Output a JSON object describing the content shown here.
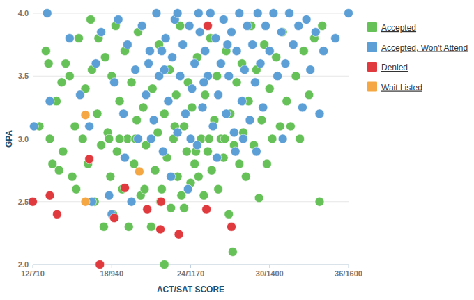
{
  "chart_data": {
    "type": "scatter",
    "x_label": "ACT/SAT SCORE",
    "y_label": "GPA",
    "xlim": [
      12,
      36
    ],
    "ylim": [
      2.0,
      4.0
    ],
    "xticks": [
      {
        "value": 12,
        "label": "12/710"
      },
      {
        "value": 18,
        "label": "18/940"
      },
      {
        "value": 24,
        "label": "24/1170"
      },
      {
        "value": 30,
        "label": "30/1400"
      },
      {
        "value": 36,
        "label": "36/1600"
      }
    ],
    "yticks": [
      {
        "value": 2.0,
        "label": "2.0"
      },
      2.5,
      {
        "value": 3.0,
        "label": "3.0"
      },
      3.5,
      {
        "value": 4.0,
        "label": "4.0"
      }
    ],
    "grid": true,
    "legend": "right",
    "marker": "circle",
    "series": [
      {
        "name": "Accepted",
        "color": "#66c159",
        "x": [
          12.5,
          13,
          13.2,
          13.5,
          13.3,
          13.8,
          14,
          14.2,
          14.5,
          14.3,
          14.8,
          15,
          15.2,
          15.5,
          15.3,
          15.8,
          16,
          16.2,
          16.4,
          16.5,
          16.7,
          16.9,
          17,
          17.2,
          17.4,
          17.5,
          17.7,
          17.9,
          18,
          18.1,
          18.3,
          18.4,
          18.6,
          18.8,
          19,
          19.2,
          19.3,
          19.5,
          19.7,
          19.9,
          20,
          20.2,
          20.4,
          20.6,
          20.8,
          21,
          21.1,
          21.3,
          21.5,
          21.6,
          21.8,
          22,
          22,
          22.2,
          22.4,
          22.5,
          22.7,
          22.9,
          23,
          23.2,
          23.3,
          23.5,
          23.7,
          23.8,
          24,
          24.1,
          24.3,
          24.5,
          24.6,
          24.8,
          25,
          25.1,
          25.3,
          25.5,
          25.6,
          25.8,
          26,
          26.1,
          26.3,
          26.5,
          26.7,
          26.9,
          27,
          27.2,
          27.3,
          27.5,
          27.7,
          27.9,
          28,
          28.2,
          28.4,
          28.6,
          28.8,
          29,
          29.2,
          29.4,
          29.6,
          29.8,
          30,
          30.2,
          30.5,
          30.8,
          31,
          31.3,
          31.6,
          32,
          32.3,
          32.6,
          33,
          33.4,
          33.8,
          34,
          23.5,
          21.7,
          20.5,
          24.4,
          22.8,
          19.8,
          18.6,
          17.8,
          25.4,
          26.6
        ],
        "values": [
          3.1,
          3.7,
          3.6,
          2.8,
          3.0,
          3.3,
          2.75,
          3.45,
          3.6,
          2.9,
          3.5,
          2.7,
          3.1,
          3.8,
          2.6,
          3.0,
          3.4,
          2.8,
          3.95,
          3.55,
          2.5,
          3.2,
          3.8,
          2.95,
          2.3,
          3.65,
          3.05,
          2.7,
          3.5,
          2.4,
          3.9,
          2.9,
          3.3,
          2.6,
          3.7,
          3.0,
          2.3,
          3.45,
          2.8,
          3.15,
          3.85,
          2.55,
          3.25,
          2.95,
          3.6,
          2.3,
          3.4,
          2.75,
          3.05,
          3.75,
          2.6,
          2.0,
          3.2,
          2.85,
          3.55,
          2.45,
          3.0,
          3.35,
          2.7,
          3.9,
          2.55,
          3.1,
          2.9,
          3.45,
          2.65,
          3.25,
          2.8,
          3.65,
          2.7,
          3.0,
          2.55,
          3.35,
          2.9,
          3.8,
          2.75,
          3.15,
          3.5,
          2.6,
          3.0,
          2.85,
          3.7,
          2.4,
          3.2,
          2.1,
          2.95,
          3.45,
          2.8,
          3.6,
          3.05,
          2.7,
          3.3,
          3.9,
          2.95,
          3.55,
          2.53,
          3.15,
          3.75,
          2.8,
          3.4,
          3.0,
          3.65,
          3.1,
          3.85,
          3.3,
          3.1,
          3.5,
          3.0,
          3.7,
          3.35,
          3.8,
          2.5,
          3.9,
          2.45,
          2.5,
          2.6,
          2.9,
          3.1,
          3.0,
          3.0,
          3.0,
          3.0,
          3.0
        ]
      },
      {
        "name": "Accepted, Won't Attend",
        "color": "#5b9fd6",
        "x": [
          12.1,
          13.1,
          13.3,
          14.8,
          15.6,
          16.3,
          16.8,
          17.2,
          17.8,
          18.2,
          18.5,
          18.9,
          19.2,
          19.5,
          19.8,
          20,
          20.3,
          20.6,
          20.9,
          21.2,
          21.4,
          21.6,
          21.9,
          22.1,
          22.3,
          22.6,
          22.8,
          23,
          23.2,
          23.4,
          23.6,
          23.9,
          24.1,
          24.3,
          24.5,
          24.7,
          24.9,
          25.1,
          25.3,
          25.5,
          25.7,
          25.9,
          26.1,
          26.3,
          26.5,
          26.7,
          26.9,
          27.1,
          27.3,
          27.5,
          27.7,
          27.9,
          28.1,
          28.3,
          28.5,
          28.7,
          28.9,
          29.1,
          29.3,
          29.5,
          29.7,
          30,
          30.3,
          30.6,
          30.9,
          31.2,
          31.5,
          31.8,
          32.2,
          32.5,
          32.8,
          33.1,
          33.5,
          33.8,
          34.1,
          35,
          36,
          21,
          22.5,
          24,
          26,
          19,
          23.8,
          27.4,
          20.8,
          18,
          16.5,
          22,
          25,
          28,
          29,
          31,
          24.6,
          23,
          21.8,
          26.8
        ],
        "values": [
          3.1,
          4.0,
          3.3,
          3.8,
          3.35,
          3.1,
          3.6,
          3.85,
          2.55,
          3.45,
          3.95,
          3.2,
          3.75,
          2.5,
          3.55,
          3.0,
          3.9,
          3.35,
          3.7,
          3.15,
          4.0,
          3.5,
          2.9,
          3.8,
          3.3,
          3.65,
          3.95,
          3.05,
          3.5,
          3.75,
          3.2,
          3.9,
          3.4,
          3.6,
          2.95,
          3.85,
          3.25,
          3.7,
          3.5,
          4.0,
          3.1,
          3.8,
          3.35,
          3.6,
          3.95,
          3.2,
          3.5,
          3.85,
          3.05,
          3.7,
          4.0,
          3.3,
          3.55,
          3.9,
          3.15,
          3.75,
          3.45,
          4.0,
          3.6,
          3.25,
          3.9,
          3.7,
          4.0,
          3.5,
          3.85,
          3.6,
          4.0,
          3.75,
          3.9,
          3.25,
          3.95,
          3.55,
          3.85,
          3.2,
          3.7,
          3.8,
          4.0,
          3.0,
          2.7,
          3.0,
          2.85,
          2.85,
          2.6,
          2.9,
          3.6,
          2.4,
          2.5,
          3.55,
          3.45,
          3.0,
          2.9,
          3.0,
          4.0,
          4.0,
          3.7,
          3.75
        ]
      },
      {
        "name": "Denied",
        "color": "#e0393e",
        "x": [
          12,
          13.3,
          13.85,
          17.1,
          16.3,
          19,
          18.2,
          20.7,
          21.7,
          21.75,
          23.1,
          25.2,
          27.1,
          25.3
        ],
        "values": [
          2.5,
          2.55,
          2.4,
          2.0,
          2.84,
          2.61,
          2.37,
          2.44,
          2.28,
          2.5,
          2.24,
          2.44,
          2.3,
          3.9
        ]
      },
      {
        "name": "Wait Listed",
        "color": "#f4a742",
        "x": [
          16,
          20.1,
          16
        ],
        "values": [
          2.5,
          2.74,
          3.19
        ]
      }
    ]
  }
}
